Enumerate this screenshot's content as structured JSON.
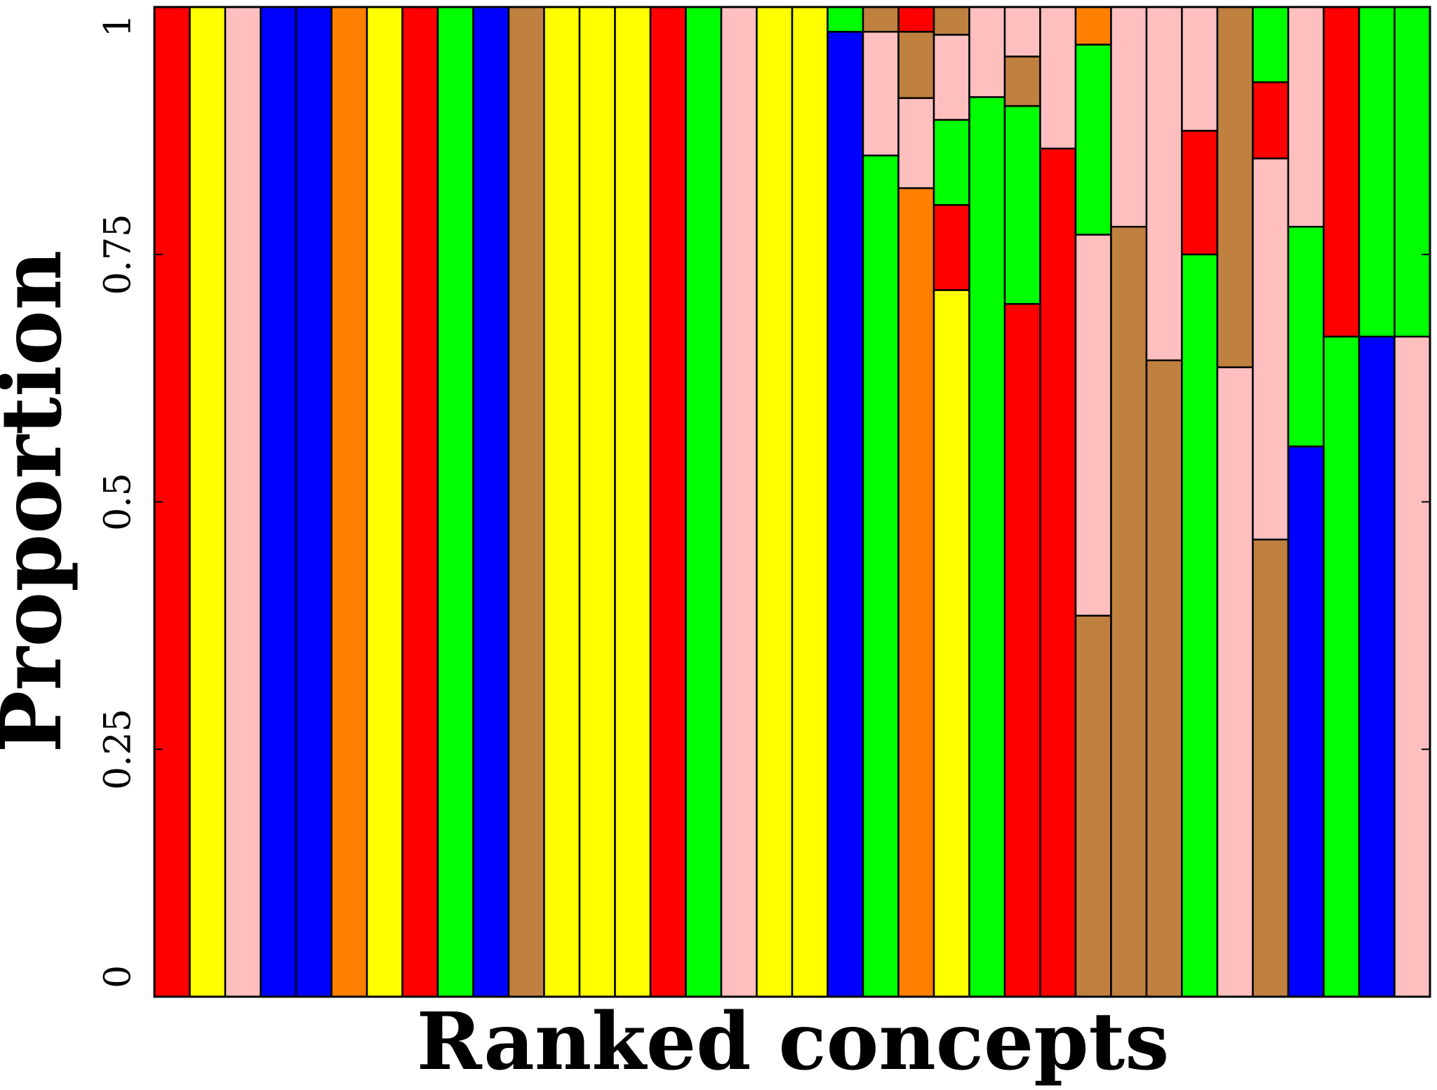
{
  "colors": {
    "red": "#ff0000",
    "yellow": "#ffff00",
    "pink": "#ffbfbf",
    "blue": "#0000ff",
    "orange": "#ff8000",
    "green": "#00ff00",
    "brown": "#bf8040"
  },
  "chart_data": {
    "type": "bar",
    "stacked": true,
    "xlabel": "Ranked concepts",
    "ylabel": "Proportion",
    "ylim": [
      0,
      1
    ],
    "yticks": [
      0,
      0.25,
      0.5,
      0.75,
      1
    ],
    "ytick_labels": [
      "0",
      "0.25",
      "0.5",
      "0.75",
      "1"
    ],
    "grid": false,
    "legend": "none",
    "bars": [
      [
        {
          "color": "red",
          "value": 1.0
        }
      ],
      [
        {
          "color": "yellow",
          "value": 1.0
        }
      ],
      [
        {
          "color": "pink",
          "value": 1.0
        }
      ],
      [
        {
          "color": "blue",
          "value": 1.0
        }
      ],
      [
        {
          "color": "blue",
          "value": 1.0
        }
      ],
      [
        {
          "color": "orange",
          "value": 1.0
        }
      ],
      [
        {
          "color": "yellow",
          "value": 1.0
        }
      ],
      [
        {
          "color": "red",
          "value": 1.0
        }
      ],
      [
        {
          "color": "green",
          "value": 1.0
        }
      ],
      [
        {
          "color": "blue",
          "value": 1.0
        }
      ],
      [
        {
          "color": "brown",
          "value": 1.0
        }
      ],
      [
        {
          "color": "yellow",
          "value": 1.0
        }
      ],
      [
        {
          "color": "yellow",
          "value": 1.0
        }
      ],
      [
        {
          "color": "yellow",
          "value": 1.0
        }
      ],
      [
        {
          "color": "red",
          "value": 1.0
        }
      ],
      [
        {
          "color": "green",
          "value": 1.0
        }
      ],
      [
        {
          "color": "pink",
          "value": 1.0
        }
      ],
      [
        {
          "color": "yellow",
          "value": 1.0
        }
      ],
      [
        {
          "color": "yellow",
          "value": 1.0
        }
      ],
      [
        {
          "color": "blue",
          "value": 0.975
        },
        {
          "color": "green",
          "value": 0.025
        }
      ],
      [
        {
          "color": "green",
          "value": 0.85
        },
        {
          "color": "pink",
          "value": 0.125
        },
        {
          "color": "brown",
          "value": 0.025
        }
      ],
      [
        {
          "color": "orange",
          "value": 0.817
        },
        {
          "color": "pink",
          "value": 0.091
        },
        {
          "color": "brown",
          "value": 0.067
        },
        {
          "color": "red",
          "value": 0.025
        }
      ],
      [
        {
          "color": "yellow",
          "value": 0.714
        },
        {
          "color": "red",
          "value": 0.086
        },
        {
          "color": "green",
          "value": 0.086
        },
        {
          "color": "pink",
          "value": 0.086
        },
        {
          "color": "brown",
          "value": 0.028
        }
      ],
      [
        {
          "color": "green",
          "value": 0.909
        },
        {
          "color": "pink",
          "value": 0.091
        }
      ],
      [
        {
          "color": "red",
          "value": 0.7
        },
        {
          "color": "green",
          "value": 0.2
        },
        {
          "color": "brown",
          "value": 0.05
        },
        {
          "color": "pink",
          "value": 0.05
        }
      ],
      [
        {
          "color": "red",
          "value": 0.857
        },
        {
          "color": "pink",
          "value": 0.143
        }
      ],
      [
        {
          "color": "brown",
          "value": 0.385
        },
        {
          "color": "pink",
          "value": 0.385
        },
        {
          "color": "green",
          "value": 0.192
        },
        {
          "color": "orange",
          "value": 0.038
        }
      ],
      [
        {
          "color": "brown",
          "value": 0.778
        },
        {
          "color": "pink",
          "value": 0.222
        }
      ],
      [
        {
          "color": "brown",
          "value": 0.643
        },
        {
          "color": "pink",
          "value": 0.357
        }
      ],
      [
        {
          "color": "green",
          "value": 0.75
        },
        {
          "color": "red",
          "value": 0.125
        },
        {
          "color": "pink",
          "value": 0.125
        }
      ],
      [
        {
          "color": "pink",
          "value": 0.636
        },
        {
          "color": "brown",
          "value": 0.364
        }
      ],
      [
        {
          "color": "brown",
          "value": 0.462
        },
        {
          "color": "pink",
          "value": 0.385
        },
        {
          "color": "red",
          "value": 0.077
        },
        {
          "color": "green",
          "value": 0.076
        }
      ],
      [
        {
          "color": "blue",
          "value": 0.556
        },
        {
          "color": "green",
          "value": 0.222
        },
        {
          "color": "pink",
          "value": 0.222
        }
      ],
      [
        {
          "color": "green",
          "value": 0.667
        },
        {
          "color": "red",
          "value": 0.333
        }
      ],
      [
        {
          "color": "blue",
          "value": 0.667
        },
        {
          "color": "green",
          "value": 0.333
        }
      ],
      [
        {
          "color": "pink",
          "value": 0.667
        },
        {
          "color": "green",
          "value": 0.333
        }
      ]
    ]
  }
}
